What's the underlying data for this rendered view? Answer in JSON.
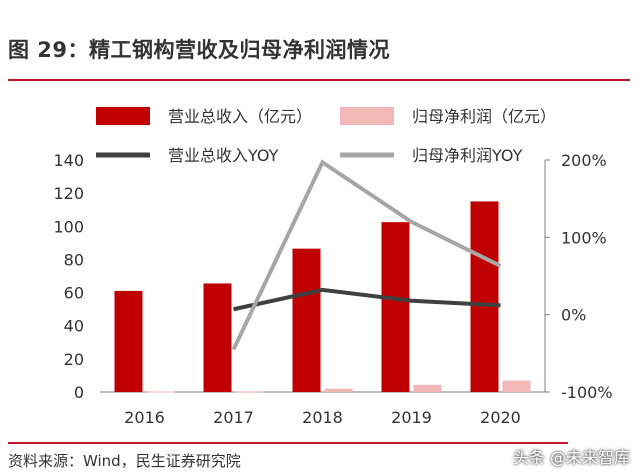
{
  "title": "图 29：精工钢构营收及归母净利润情况",
  "source": "资料来源：Wind，民生证券研究院",
  "watermark": "头条 @未来智库",
  "colors": {
    "revenue": "#c00000",
    "profit": "#f2b8b8",
    "revenue_yoy": "#404040",
    "profit_yoy": "#a6a6a6",
    "accent": "#c9162b"
  },
  "chart_data": {
    "type": "bar",
    "categories": [
      "2016",
      "2017",
      "2018",
      "2019",
      "2020"
    ],
    "series": [
      {
        "name": "营业总收入（亿元）",
        "type": "bar",
        "axis": "left",
        "values": [
          61,
          65.5,
          86.5,
          102.5,
          115
        ]
      },
      {
        "name": "归母净利润（亿元）",
        "type": "bar",
        "axis": "left",
        "values": [
          0.3,
          0.4,
          2,
          4.3,
          6.9
        ]
      },
      {
        "name": "营业总收入YOY",
        "type": "line",
        "axis": "right",
        "values": [
          null,
          7,
          32,
          18,
          12
        ]
      },
      {
        "name": "归母净利润YOY",
        "type": "line",
        "axis": "right",
        "values": [
          null,
          -45,
          197,
          120,
          63
        ]
      }
    ],
    "ylim_left": [
      0,
      140
    ],
    "yticks_left": [
      "0",
      "20",
      "40",
      "60",
      "80",
      "100",
      "120",
      "140"
    ],
    "ylim_right": [
      -100,
      200
    ],
    "yticks_right": [
      "-100%",
      "0%",
      "100%",
      "200%"
    ],
    "grid": false,
    "legend_position": "top"
  }
}
